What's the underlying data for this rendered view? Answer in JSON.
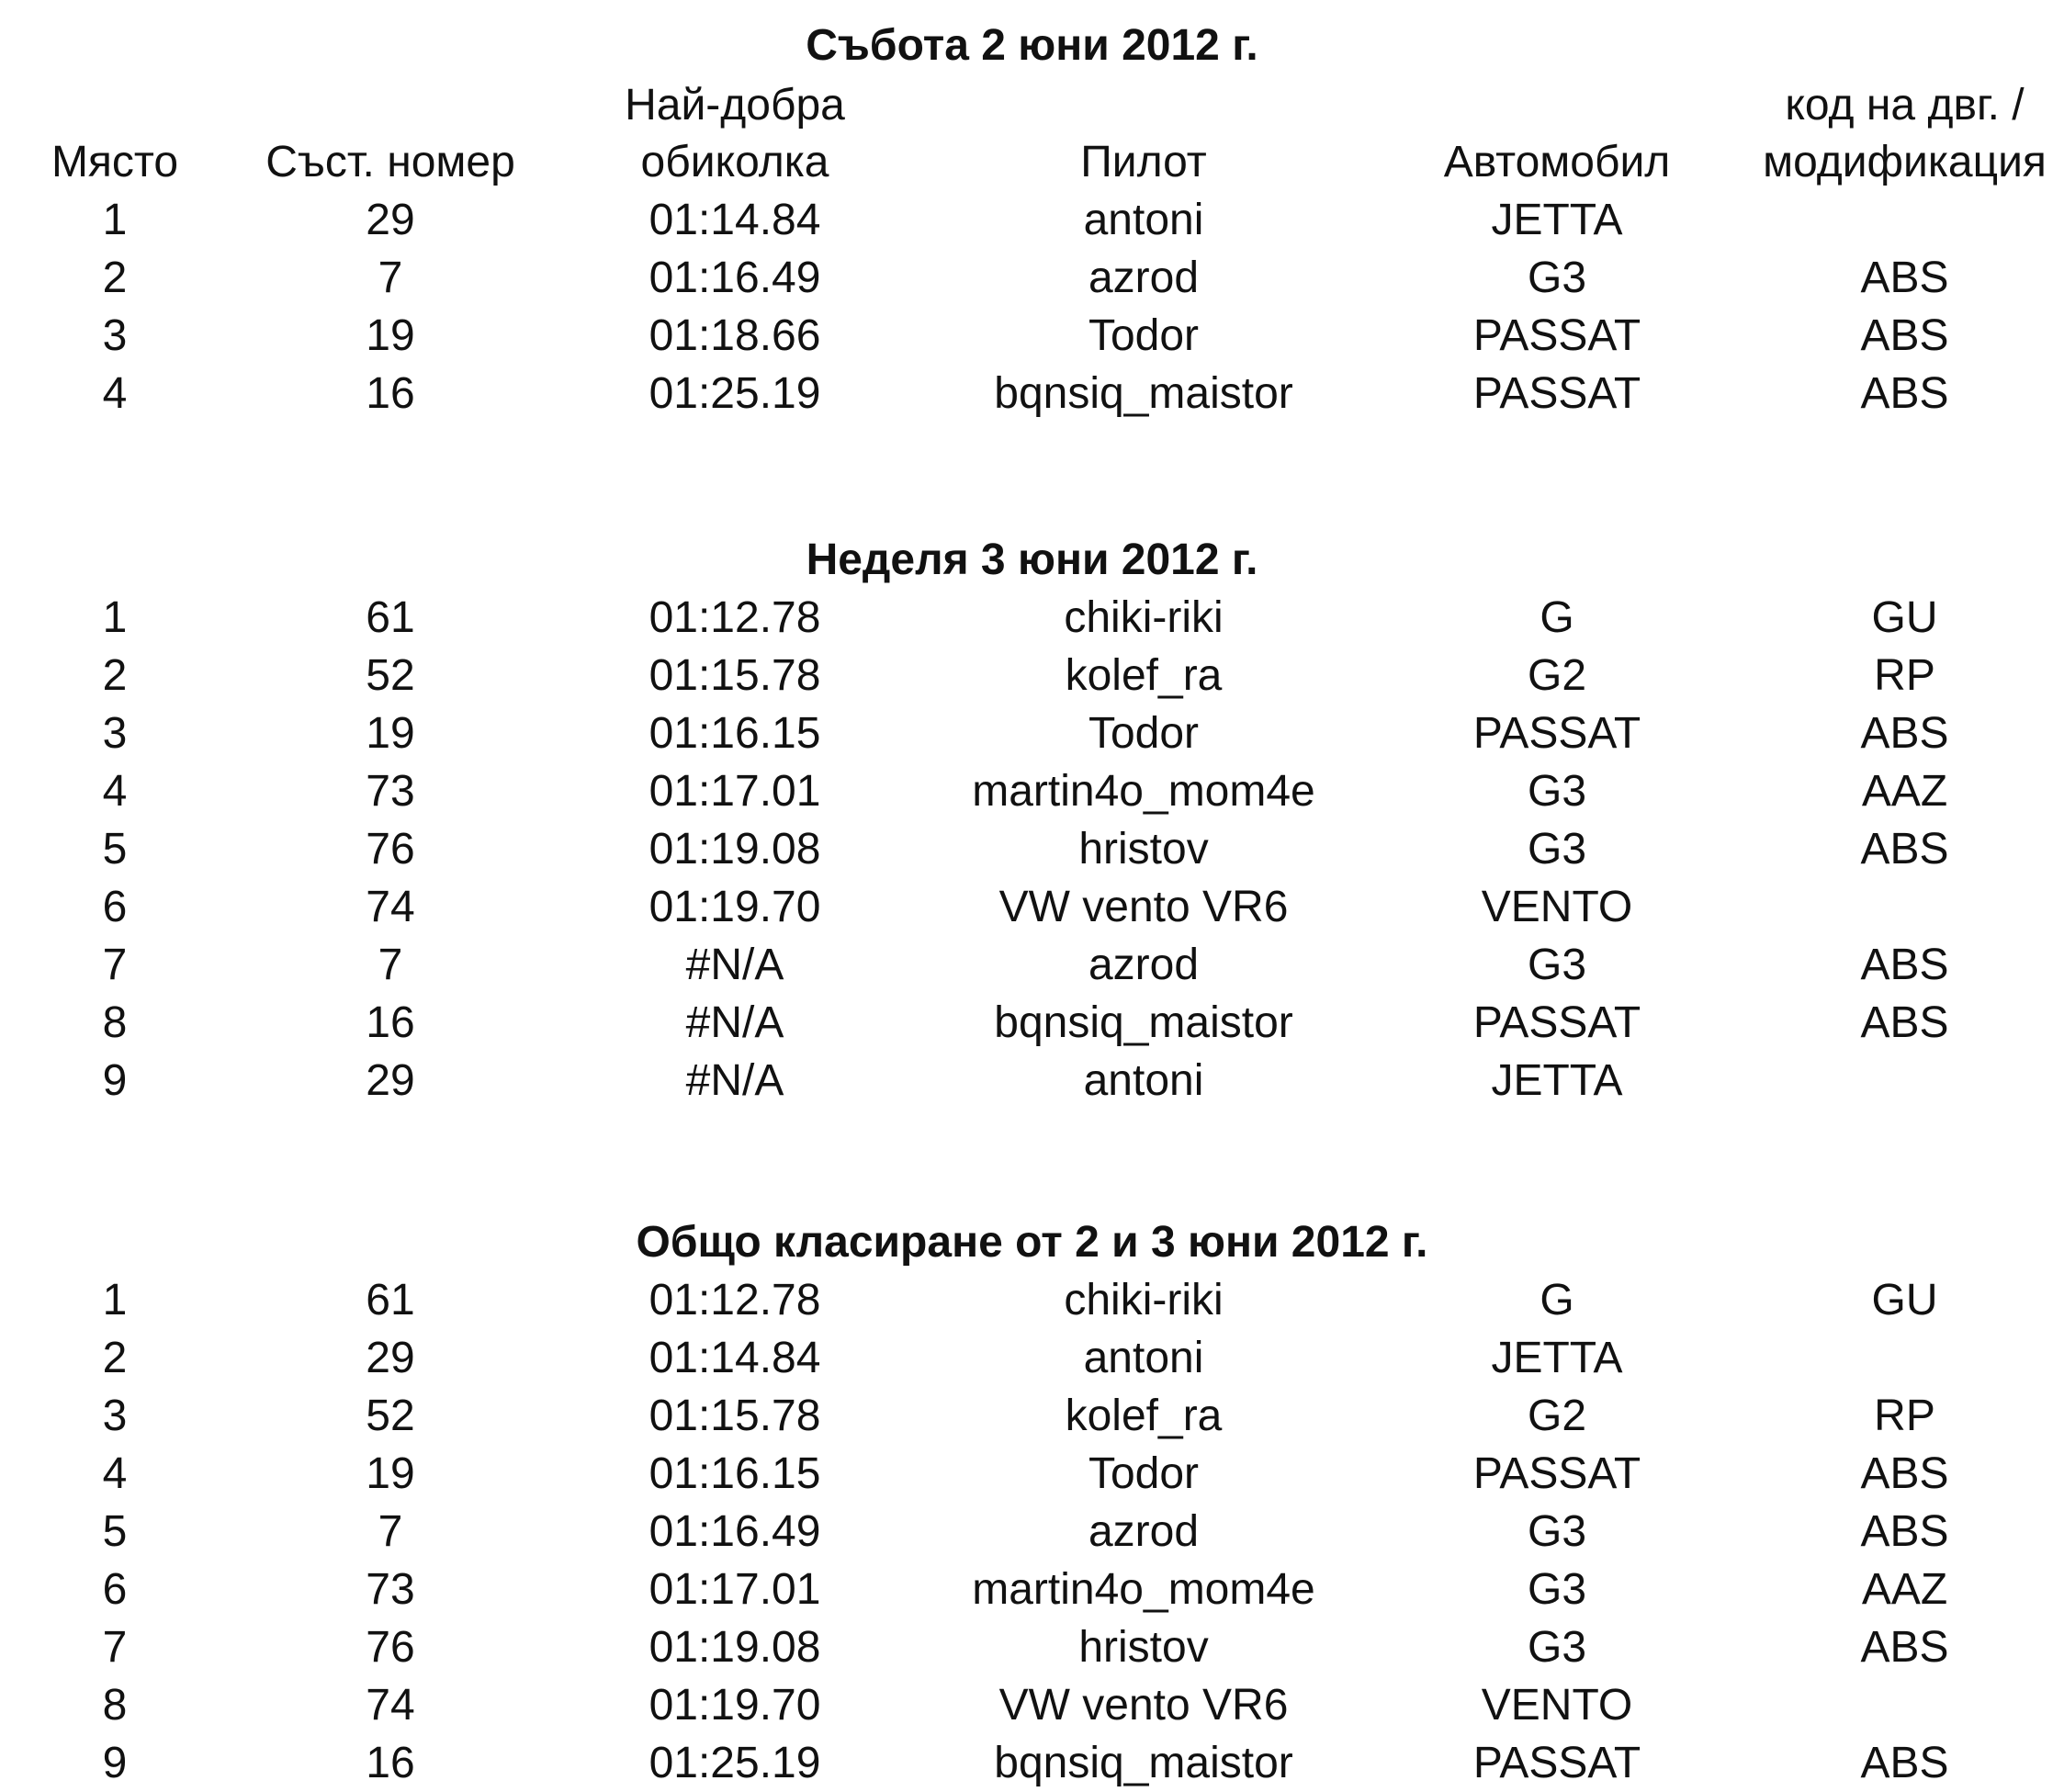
{
  "page": {
    "background": "#ffffff",
    "text_color": "#111111"
  },
  "header": {
    "place": "Място",
    "number": "Съст. номер",
    "best_lap_line1": "Най-добра",
    "best_lap_line2": "обиколка",
    "pilot": "Пилот",
    "car": "Автомобил",
    "engine_code_line1": "код на двг. /",
    "engine_code_line2": "модификация"
  },
  "tables": [
    {
      "title": "Събота 2 юни 2012 г.",
      "rows": [
        [
          "1",
          "29",
          "01:14.84",
          "antoni",
          "JETTA",
          ""
        ],
        [
          "2",
          "7",
          "01:16.49",
          "azrod",
          "G3",
          "ABS"
        ],
        [
          "3",
          "19",
          "01:18.66",
          "Todor",
          "PASSAT",
          "ABS"
        ],
        [
          "4",
          "16",
          "01:25.19",
          "bqnsiq_maistor",
          "PASSAT",
          "ABS"
        ]
      ]
    },
    {
      "title": "Неделя 3 юни 2012 г.",
      "rows": [
        [
          "1",
          "61",
          "01:12.78",
          "chiki-riki",
          "G",
          "GU"
        ],
        [
          "2",
          "52",
          "01:15.78",
          "kolef_ra",
          "G2",
          "RP"
        ],
        [
          "3",
          "19",
          "01:16.15",
          "Todor",
          "PASSAT",
          "ABS"
        ],
        [
          "4",
          "73",
          "01:17.01",
          "martin4o_mom4e",
          "G3",
          "AAZ"
        ],
        [
          "5",
          "76",
          "01:19.08",
          "hristov",
          "G3",
          "ABS"
        ],
        [
          "6",
          "74",
          "01:19.70",
          "VW vento VR6",
          "VENTO",
          ""
        ],
        [
          "7",
          "7",
          "#N/A",
          "azrod",
          "G3",
          "ABS"
        ],
        [
          "8",
          "16",
          "#N/A",
          "bqnsiq_maistor",
          "PASSAT",
          "ABS"
        ],
        [
          "9",
          "29",
          "#N/A",
          "antoni",
          "JETTA",
          ""
        ]
      ]
    },
    {
      "title": "Общо класиране от 2 и 3 юни 2012 г.",
      "rows": [
        [
          "1",
          "61",
          "01:12.78",
          "chiki-riki",
          "G",
          "GU"
        ],
        [
          "2",
          "29",
          "01:14.84",
          "antoni",
          "JETTA",
          ""
        ],
        [
          "3",
          "52",
          "01:15.78",
          "kolef_ra",
          "G2",
          "RP"
        ],
        [
          "4",
          "19",
          "01:16.15",
          "Todor",
          "PASSAT",
          "ABS"
        ],
        [
          "5",
          "7",
          "01:16.49",
          "azrod",
          "G3",
          "ABS"
        ],
        [
          "6",
          "73",
          "01:17.01",
          "martin4o_mom4e",
          "G3",
          "AAZ"
        ],
        [
          "7",
          "76",
          "01:19.08",
          "hristov",
          "G3",
          "ABS"
        ],
        [
          "8",
          "74",
          "01:19.70",
          "VW vento VR6",
          "VENTO",
          ""
        ],
        [
          "9",
          "16",
          "01:25.19",
          "bqnsiq_maistor",
          "PASSAT",
          "ABS"
        ]
      ]
    }
  ]
}
